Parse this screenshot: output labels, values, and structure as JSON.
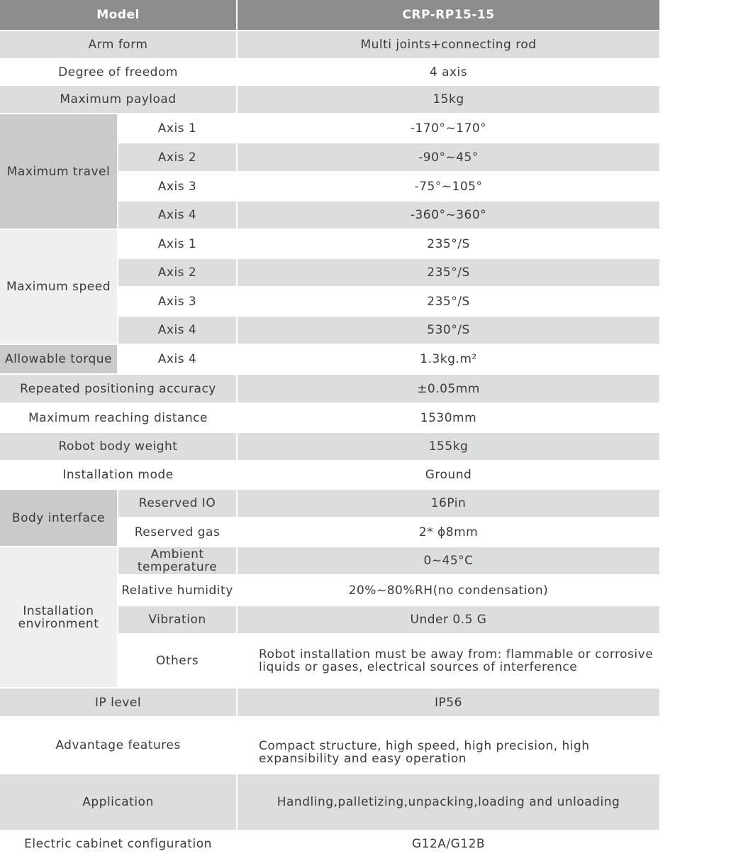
{
  "header": {
    "label": "Model",
    "value": "CRP-RP15-15"
  },
  "arm_form": {
    "label": "Arm form",
    "value": "Multi joints+connecting rod"
  },
  "dof": {
    "label": "Degree of freedom",
    "value": "4 axis"
  },
  "payload": {
    "label": "Maximum payload",
    "value": "15kg"
  },
  "travel": {
    "label": "Maximum travel",
    "axes": [
      {
        "label": "Axis 1",
        "value": "-170°~170°"
      },
      {
        "label": "Axis 2",
        "value": "-90°~45°"
      },
      {
        "label": "Axis 3",
        "value": "-75°~105°"
      },
      {
        "label": "Axis 4",
        "value": "-360°~360°"
      }
    ]
  },
  "speed": {
    "label": "Maximum speed",
    "axes": [
      {
        "label": "Axis 1",
        "value": "235°/S"
      },
      {
        "label": "Axis 2",
        "value": "235°/S"
      },
      {
        "label": "Axis 3",
        "value": "235°/S"
      },
      {
        "label": "Axis 4",
        "value": "530°/S"
      }
    ]
  },
  "torque": {
    "label": "Allowable torque",
    "axis": "Axis 4",
    "value": "1.3kg.m²"
  },
  "repeat": {
    "label": "Repeated positioning accuracy",
    "value": "±0.05mm"
  },
  "reach": {
    "label": "Maximum reaching distance",
    "value": "1530mm"
  },
  "weight": {
    "label": "Robot body weight",
    "value": "155kg"
  },
  "install_mode": {
    "label": "Installation mode",
    "value": "Ground"
  },
  "body_interface": {
    "label": "Body interface",
    "io_label": "Reserved IO",
    "io_value": "16Pin",
    "gas_label": "Reserved gas",
    "gas_value": "2* ϕ8mm"
  },
  "environment": {
    "label": "Installation environment",
    "ambient_label": "Ambient temperature",
    "ambient_value": "0~45°C",
    "humidity_label": "Relative humidity",
    "humidity_value": "20%~80%RH(no condensation)",
    "vibration_label": "Vibration",
    "vibration_value": "Under 0.5 G",
    "others_label": "Others",
    "others_value": "Robot installation must be away from: flammable or corrosive liquids or gases, electrical sources of interference"
  },
  "ip": {
    "label": "IP level",
    "value": "IP56"
  },
  "advantage": {
    "label": "Advantage features",
    "value": "Compact structure, high speed, high precision, high expansibility and easy operation"
  },
  "application": {
    "label": "Application",
    "value": "Handling,palletizing,unpacking,loading and unloading"
  },
  "cabinet": {
    "label": "Electric cabinet configuration",
    "value": "G12A/G12B"
  }
}
